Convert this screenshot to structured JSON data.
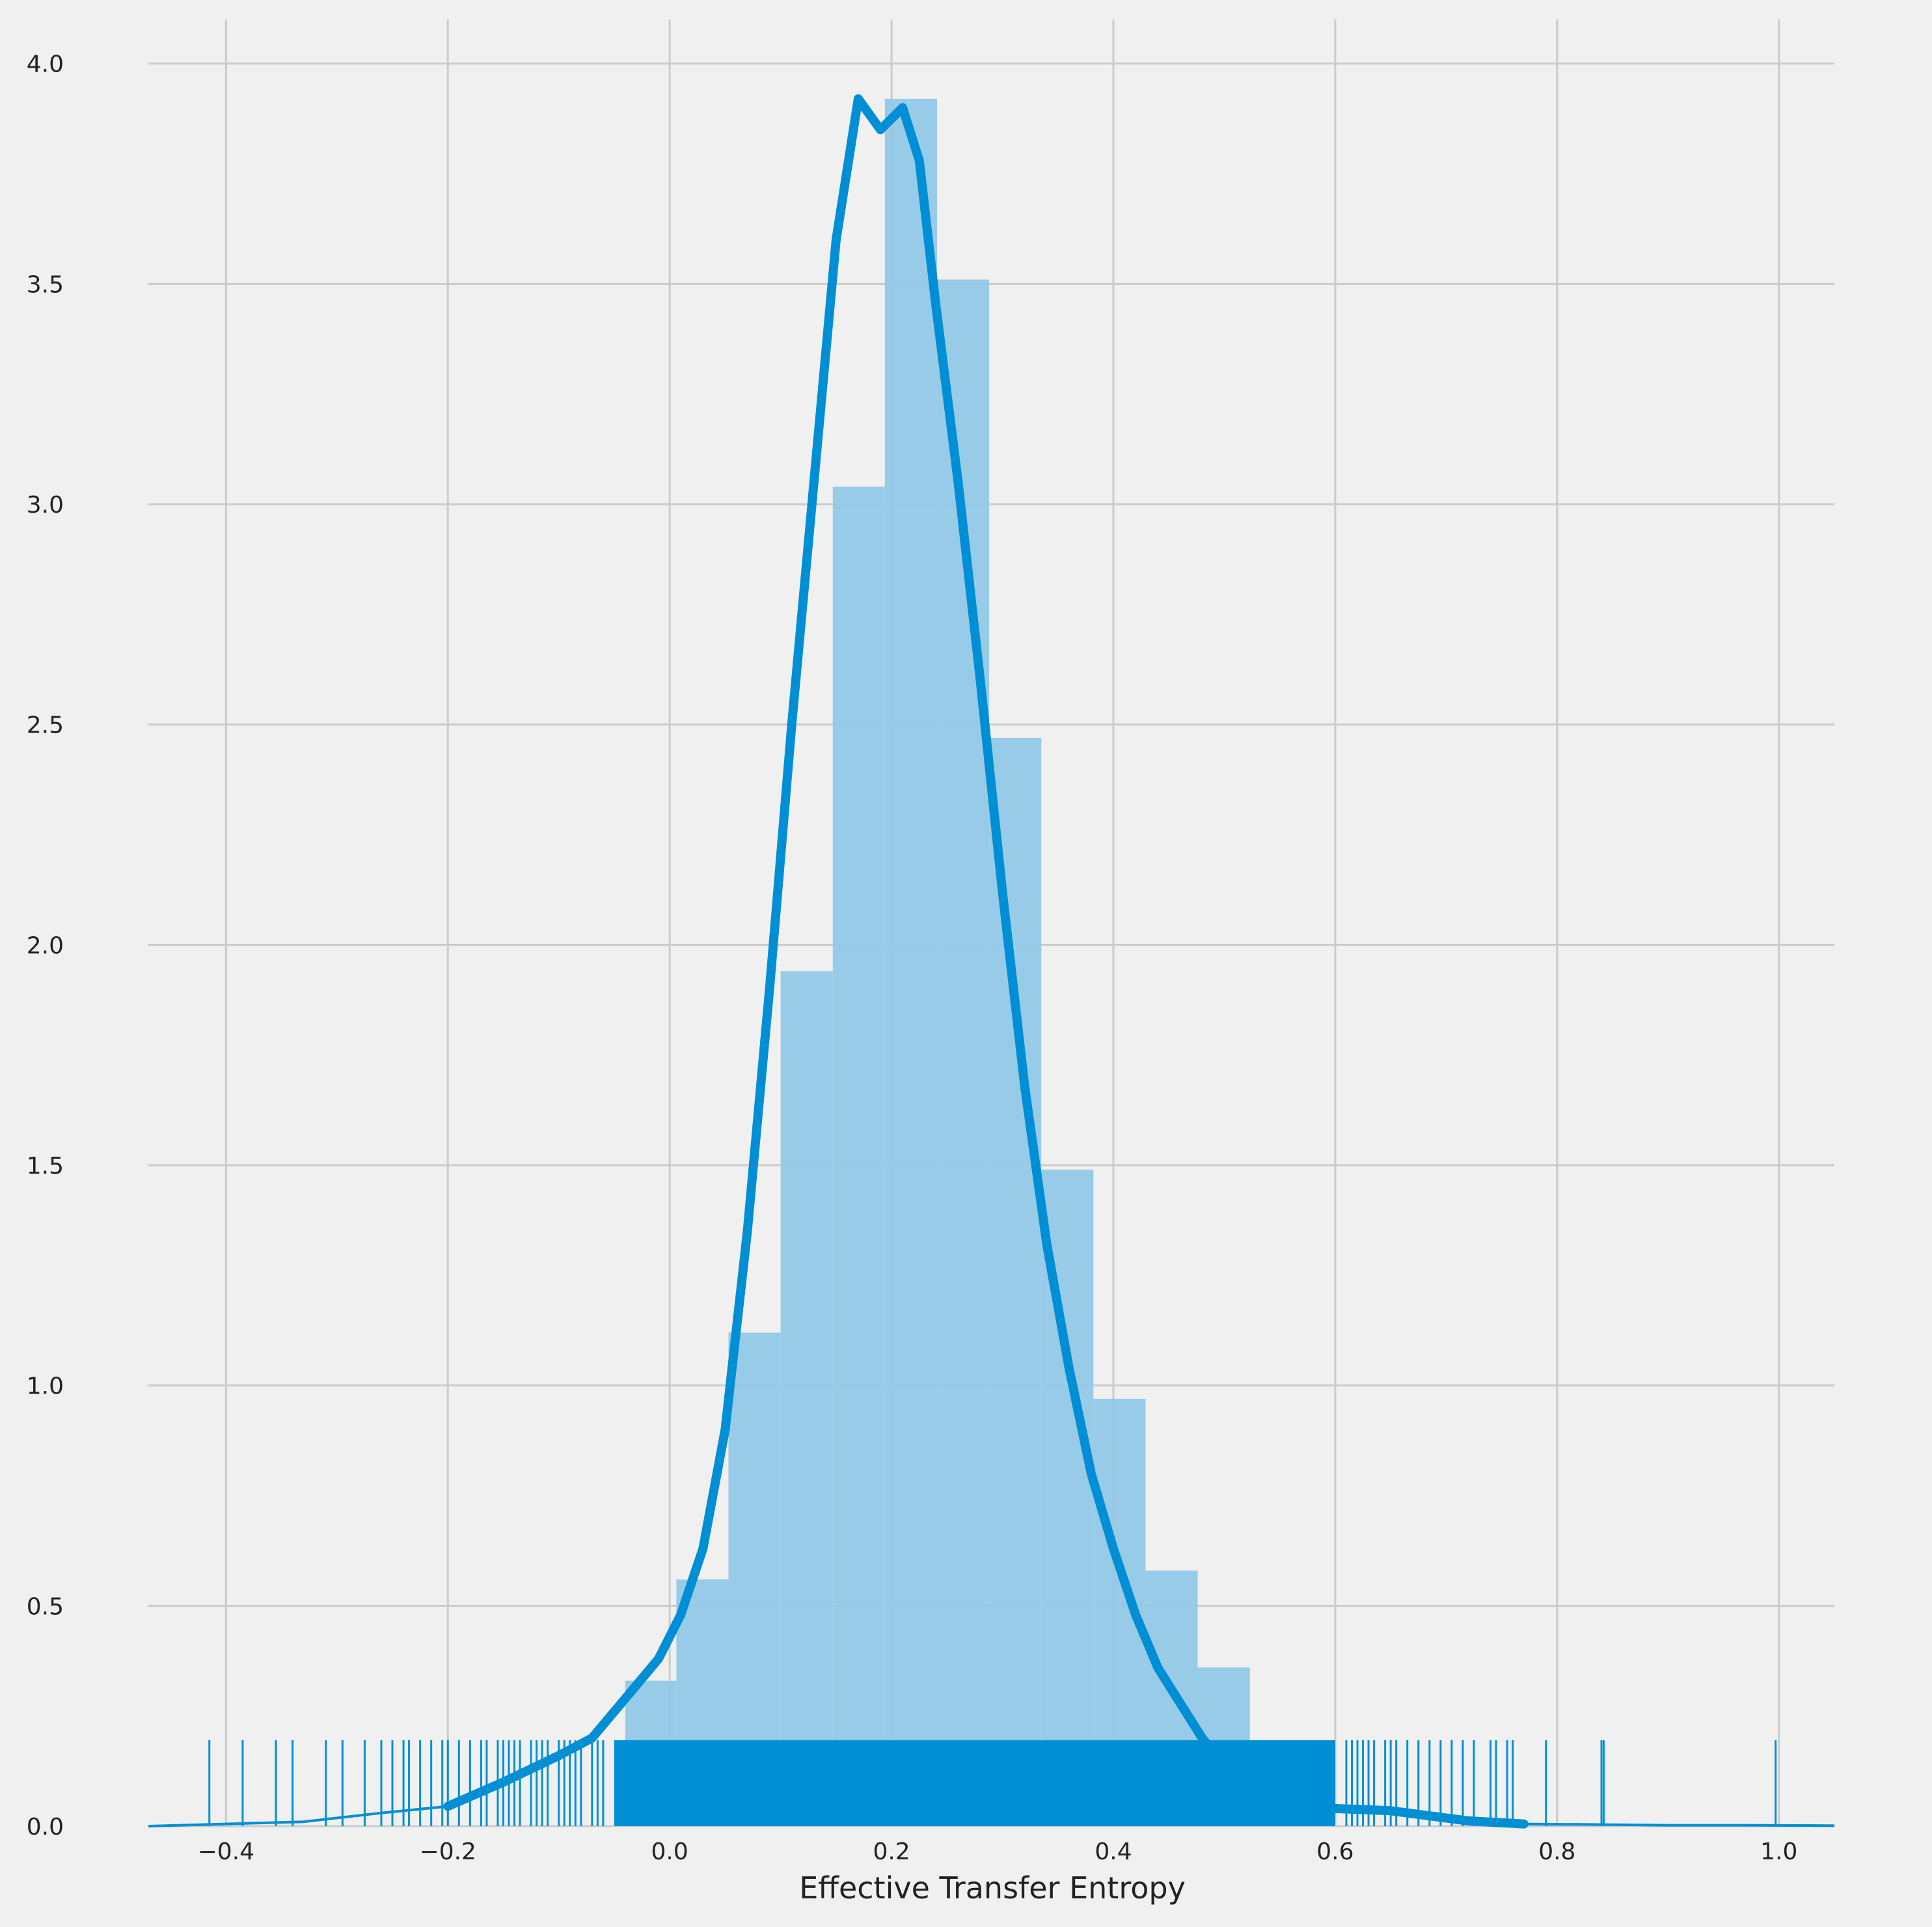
{
  "chart_data": {
    "type": "histogram",
    "title": "",
    "xlabel": "Effective Transfer Entropy",
    "ylabel": "",
    "xlim": [
      -0.47,
      1.05
    ],
    "ylim": [
      0.0,
      4.1
    ],
    "x_ticks": [
      -0.4,
      -0.2,
      0.0,
      0.2,
      0.4,
      0.6,
      0.8,
      1.0
    ],
    "x_tick_labels": [
      "−0.4",
      "−0.2",
      "0.0",
      "0.2",
      "0.4",
      "0.6",
      "0.8",
      "1.0"
    ],
    "y_ticks": [
      0.0,
      0.5,
      1.0,
      1.5,
      2.0,
      2.5,
      3.0,
      3.5,
      4.0
    ],
    "y_tick_labels": [
      "0.0",
      "0.5",
      "1.0",
      "1.5",
      "2.0",
      "2.5",
      "3.0",
      "3.5",
      "4.0"
    ],
    "grid": true,
    "colors": {
      "background": "#f0f0f0",
      "grid": "#cbcbcb",
      "bar": "#92c8e6",
      "line": "#008fd5"
    },
    "histogram": {
      "bin_edges": [
        -0.04,
        0.006,
        0.053,
        0.1,
        0.147,
        0.194,
        0.241,
        0.288,
        0.335,
        0.382,
        0.429,
        0.476,
        0.523
      ],
      "heights": [
        0.33,
        0.56,
        1.12,
        1.94,
        3.04,
        3.92,
        3.51,
        2.47,
        1.49,
        0.97,
        0.58,
        0.36
      ]
    },
    "kde": {
      "x": [
        -0.47,
        -0.4,
        -0.33,
        -0.26,
        -0.2,
        -0.15,
        -0.1,
        -0.07,
        -0.04,
        -0.01,
        0.01,
        0.03,
        0.05,
        0.07,
        0.09,
        0.11,
        0.13,
        0.15,
        0.17,
        0.19,
        0.21,
        0.225,
        0.24,
        0.26,
        0.28,
        0.3,
        0.32,
        0.34,
        0.36,
        0.38,
        0.4,
        0.42,
        0.44,
        0.46,
        0.48,
        0.5,
        0.53,
        0.56,
        0.6,
        0.65,
        0.72,
        0.77,
        0.82,
        0.9,
        0.97,
        1.05
      ],
      "y": [
        0.0,
        0.005,
        0.01,
        0.03,
        0.045,
        0.1,
        0.16,
        0.2,
        0.29,
        0.38,
        0.48,
        0.63,
        0.9,
        1.35,
        1.9,
        2.5,
        3.05,
        3.6,
        3.92,
        3.85,
        3.9,
        3.78,
        3.45,
        3.05,
        2.6,
        2.12,
        1.68,
        1.32,
        1.04,
        0.8,
        0.63,
        0.48,
        0.36,
        0.28,
        0.2,
        0.14,
        0.09,
        0.06,
        0.04,
        0.035,
        0.012,
        0.005,
        0.004,
        0.002,
        0.002,
        0.001
      ]
    },
    "rug": {
      "height": 0.195,
      "dense_range": [
        -0.05,
        0.6
      ],
      "sparse_values": [
        -0.415,
        -0.385,
        -0.355,
        -0.34,
        -0.31,
        -0.295,
        -0.275,
        -0.26,
        -0.25,
        -0.24,
        -0.235,
        -0.225,
        -0.215,
        -0.205,
        -0.2,
        -0.19,
        -0.18,
        -0.17,
        -0.165,
        -0.155,
        -0.15,
        -0.145,
        -0.14,
        -0.135,
        -0.125,
        -0.12,
        -0.115,
        -0.11,
        -0.1,
        -0.095,
        -0.09,
        -0.085,
        -0.08,
        -0.07,
        -0.065,
        -0.06,
        0.61,
        0.615,
        0.62,
        0.625,
        0.63,
        0.635,
        0.645,
        0.65,
        0.655,
        0.665,
        0.675,
        0.685,
        0.695,
        0.705,
        0.715,
        0.725,
        0.74,
        0.745,
        0.755,
        0.76,
        0.79,
        0.84,
        0.842,
        0.997
      ]
    }
  }
}
